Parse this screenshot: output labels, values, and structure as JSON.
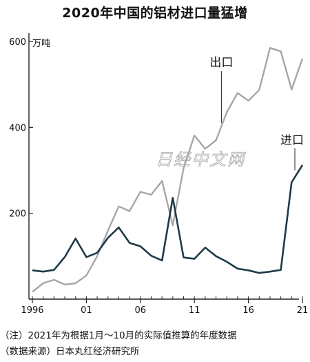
{
  "title": "2020年中国的铝材进口量猛增",
  "unit": "万吨",
  "watermark": "日经中文网",
  "footnote": "（注）2021年为根据1月～10月的实际值推算的年度数据",
  "source": "（数据来源）日本丸红经济研究所",
  "colors": {
    "export": "#a6a6a6",
    "import": "#1e3a46",
    "axis": "#222222"
  },
  "chart_data": {
    "type": "line",
    "title": "2020年中国的铝材进口量猛增",
    "ylabel": "万吨",
    "xlabel": "",
    "ylim": [
      0,
      600
    ],
    "yticks": [
      200,
      400,
      600
    ],
    "xlim": [
      1996,
      2021
    ],
    "xticks": [
      {
        "value": 1996,
        "label": "1996"
      },
      {
        "value": 2001,
        "label": "01"
      },
      {
        "value": 2006,
        "label": "06"
      },
      {
        "value": 2011,
        "label": "11"
      },
      {
        "value": 2016,
        "label": "16"
      },
      {
        "value": 2021,
        "label": "21"
      }
    ],
    "grid": false,
    "legend": "labels on lines",
    "x": [
      1996,
      1997,
      1998,
      1999,
      2000,
      2001,
      2002,
      2003,
      2004,
      2005,
      2006,
      2007,
      2008,
      2009,
      2010,
      2011,
      2012,
      2013,
      2014,
      2015,
      2016,
      2017,
      2018,
      2019,
      2020,
      2021
    ],
    "series": [
      {
        "name": "出口",
        "key": "export",
        "values": [
          17,
          37,
          45,
          34,
          37,
          55,
          100,
          160,
          216,
          205,
          250,
          243,
          275,
          172,
          305,
          381,
          350,
          370,
          435,
          480,
          462,
          487,
          585,
          577,
          488,
          560
        ]
      },
      {
        "name": "进口",
        "key": "import",
        "values": [
          67,
          64,
          68,
          98,
          141,
          98,
          108,
          143,
          167,
          131,
          123,
          101,
          90,
          236,
          97,
          94,
          120,
          100,
          87,
          71,
          67,
          61,
          64,
          68,
          272,
          312
        ]
      }
    ]
  }
}
